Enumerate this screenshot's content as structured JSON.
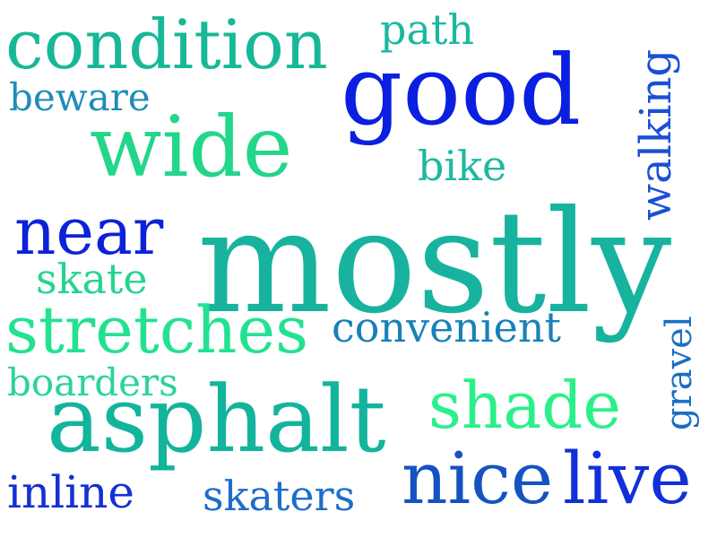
{
  "word_cloud": {
    "words": [
      {
        "text": "condition",
        "color": "#17b897"
      },
      {
        "text": "path",
        "color": "#19b8a0"
      },
      {
        "text": "good",
        "color": "#0b1fe0"
      },
      {
        "text": "beware",
        "color": "#1f8cb8"
      },
      {
        "text": "wide",
        "color": "#22d68a"
      },
      {
        "text": "bike",
        "color": "#1fb8a3"
      },
      {
        "text": "walking",
        "color": "#1a4fd6"
      },
      {
        "text": "near",
        "color": "#0b22d8"
      },
      {
        "text": "mostly",
        "color": "#18b39e"
      },
      {
        "text": "skate",
        "color": "#26d48f"
      },
      {
        "text": "stretches",
        "color": "#22e291"
      },
      {
        "text": "convenient",
        "color": "#1a80b8"
      },
      {
        "text": "boarders",
        "color": "#2bd39b"
      },
      {
        "text": "gravel",
        "color": "#1a6fc2"
      },
      {
        "text": "asphalt",
        "color": "#13b49c"
      },
      {
        "text": "shade",
        "color": "#2af08a"
      },
      {
        "text": "inline",
        "color": "#1530d2"
      },
      {
        "text": "skaters",
        "color": "#1d6ec9"
      },
      {
        "text": "nice",
        "color": "#1552c2"
      },
      {
        "text": "live",
        "color": "#1130d8"
      }
    ]
  }
}
